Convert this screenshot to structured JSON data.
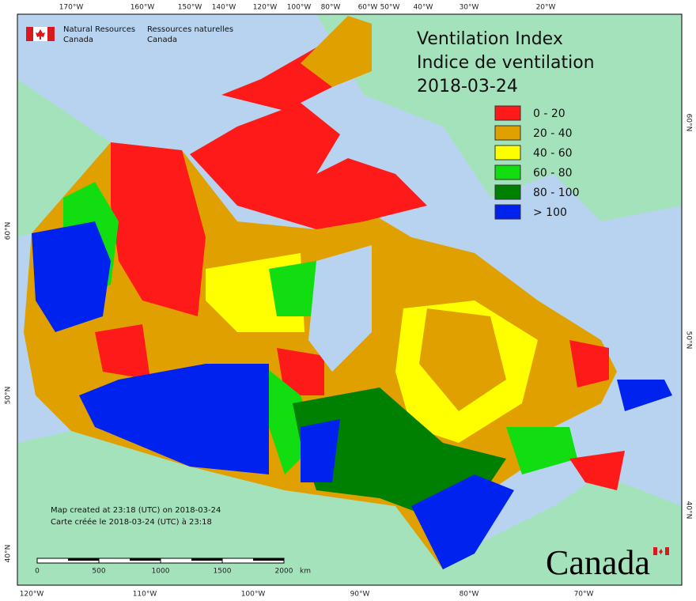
{
  "header": {
    "agency_en": [
      "Natural Resources",
      "Canada"
    ],
    "agency_fr": [
      "Ressources naturelles",
      "Canada"
    ],
    "title": [
      "Ventilation Index",
      "Indice de ventilation",
      "2018-03-24"
    ]
  },
  "legend": [
    {
      "label": "0 - 20",
      "color": "#ff1a1a"
    },
    {
      "label": "20 - 40",
      "color": "#e0a000"
    },
    {
      "label": "40 - 60",
      "color": "#ffff00"
    },
    {
      "label": "60 - 80",
      "color": "#11dd11"
    },
    {
      "label": "80 - 100",
      "color": "#008000"
    },
    {
      "label": "> 100",
      "color": "#0022ee"
    }
  ],
  "top_labels": [
    "170°W",
    "160°W",
    "150°W",
    "140°W",
    "120°W",
    "100°W",
    "80°W",
    "60°W",
    "50°W",
    "40°W",
    "30°W",
    "20°W"
  ],
  "bottom_labels": [
    "120°W",
    "110°W",
    "100°W",
    "90°W",
    "80°W",
    "70°W"
  ],
  "left_labels": [
    "60°N",
    "50°N",
    "40°N"
  ],
  "right_labels": [
    "60°N",
    "50°N",
    "40°N"
  ],
  "scale": {
    "ticks": [
      "0",
      "500",
      "1000",
      "1500",
      "2000"
    ],
    "unit": "km"
  },
  "notes": [
    "Map created at 23:18 (UTC) on 2018-03-24",
    "Carte créée le 2018-03-24 (UTC) à 23:18"
  ],
  "wordmark": "Canada"
}
